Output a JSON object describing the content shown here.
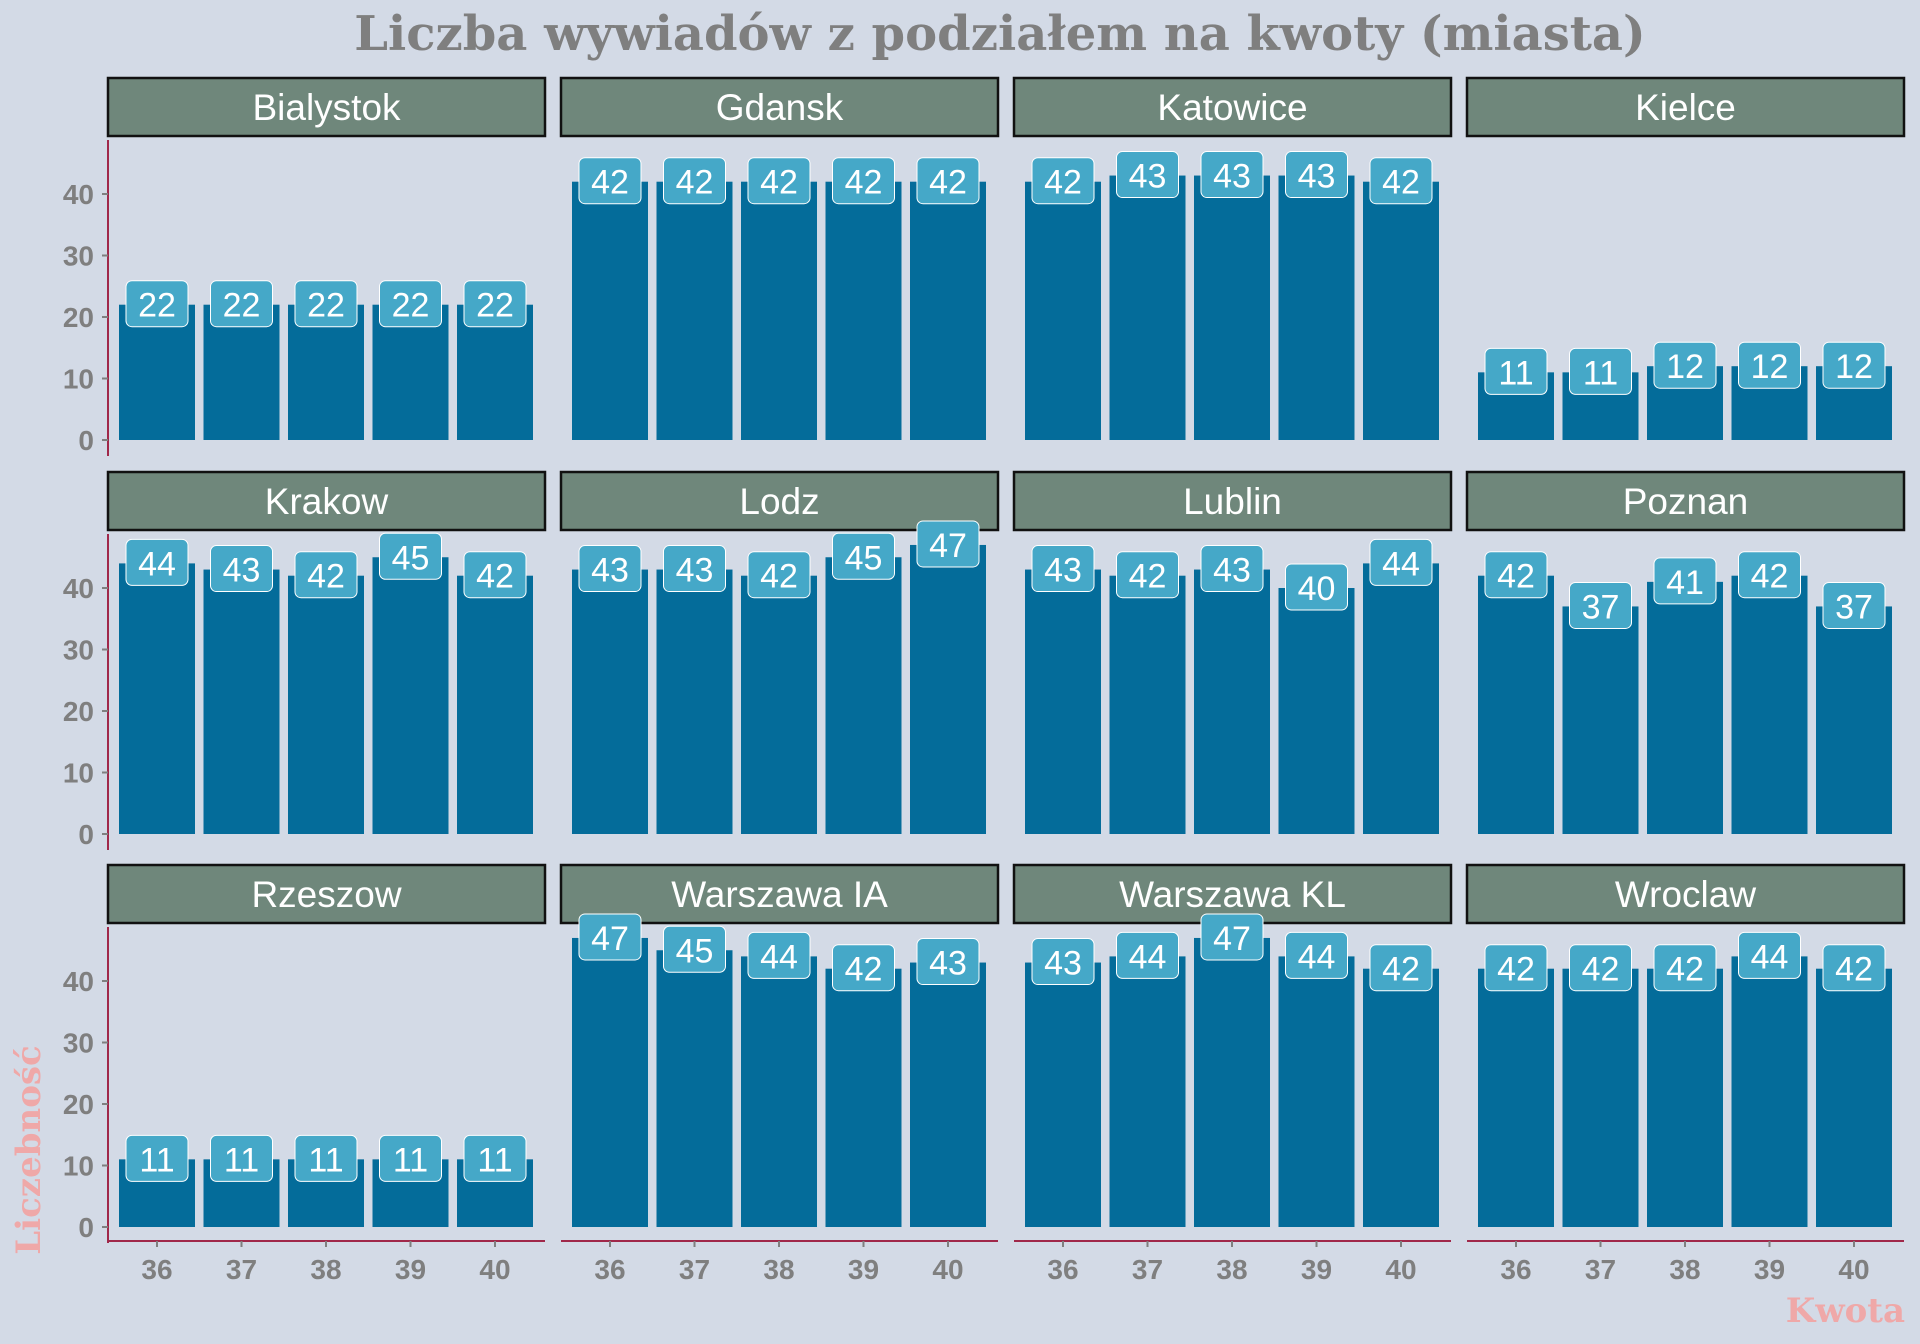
{
  "chart_data": {
    "type": "bar",
    "title": "Liczba wywiadów z podziałem na kwoty (miasta)",
    "xlabel": "Kwota",
    "ylabel": "Liczebność",
    "categories": [
      "36",
      "37",
      "38",
      "39",
      "40"
    ],
    "yticks": [
      "0",
      "10",
      "20",
      "30",
      "40"
    ],
    "ylim": [
      0,
      49
    ],
    "grid": false,
    "facets": [
      {
        "name": "Bialystok",
        "values": [
          22,
          22,
          22,
          22,
          22
        ]
      },
      {
        "name": "Gdansk",
        "values": [
          42,
          42,
          42,
          42,
          42
        ]
      },
      {
        "name": "Katowice",
        "values": [
          42,
          43,
          43,
          43,
          42
        ]
      },
      {
        "name": "Kielce",
        "values": [
          11,
          11,
          12,
          12,
          12
        ]
      },
      {
        "name": "Krakow",
        "values": [
          44,
          43,
          42,
          45,
          42
        ]
      },
      {
        "name": "Lodz",
        "values": [
          43,
          43,
          42,
          45,
          47
        ]
      },
      {
        "name": "Lublin",
        "values": [
          43,
          42,
          43,
          40,
          44
        ]
      },
      {
        "name": "Poznan",
        "values": [
          42,
          37,
          41,
          42,
          37
        ]
      },
      {
        "name": "Rzeszow",
        "values": [
          11,
          11,
          11,
          11,
          11
        ]
      },
      {
        "name": "Warszawa IA",
        "values": [
          47,
          45,
          44,
          42,
          43
        ]
      },
      {
        "name": "Warszawa KL",
        "values": [
          43,
          44,
          47,
          44,
          42
        ]
      },
      {
        "name": "Wroclaw",
        "values": [
          42,
          42,
          42,
          44,
          42
        ]
      }
    ]
  },
  "colors": {
    "background": "#D3DAE6",
    "bar": "#046C9A",
    "label_fill": "#45A8C8",
    "strip_fill": "#6F877B",
    "strip_border": "#111111",
    "axis_line": "#A0284A",
    "axis_title": "#EFA8A8",
    "text": "#7F7F7F"
  }
}
